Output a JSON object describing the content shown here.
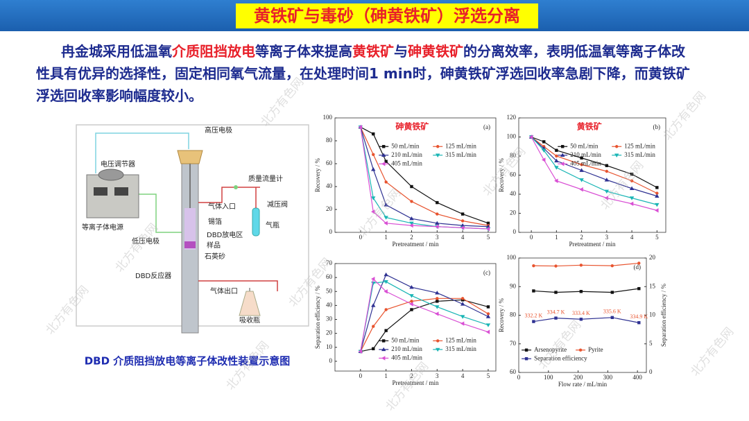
{
  "header": {
    "title": "黄铁矿与毒砂（砷黄铁矿）浮选分离"
  },
  "paragraph": [
    {
      "text": "冉金城采用低温氧",
      "color": "#1d2b8f"
    },
    {
      "text": "介质阻挡放电",
      "color": "#e8202a"
    },
    {
      "text": "等离子体来提高",
      "color": "#1d2b8f"
    },
    {
      "text": "黄铁矿",
      "color": "#e8202a"
    },
    {
      "text": "与",
      "color": "#1d2b8f"
    },
    {
      "text": "砷黄铁矿",
      "color": "#e8202a"
    },
    {
      "text": "的分离效率，表明低温氧等离子体改性具有优异的选择性，固定相同氧气流量，在处理时间1 min时，砷黄铁矿浮选回收率急剧下降，而黄铁矿浮选回收率影响幅度较小。",
      "color": "#1d2b8f"
    }
  ],
  "diagram": {
    "labels": [
      "高压电极",
      "电压调节器",
      "质量流量计",
      "减压阀",
      "气体入口",
      "锡箔",
      "气瓶",
      "等离子体电源",
      "低压电极",
      "DBD放电区",
      "样品",
      "石英砂",
      "DBD反应器",
      "气体出口",
      "吸收瓶"
    ],
    "caption": "DBD 介质阻挡放电等离子体改性装置示意图"
  },
  "watermark": "北方有色网",
  "chart_data": [
    {
      "type": "line",
      "label": "砷黄铁矿",
      "label_color": "#e8202a",
      "panel": "(a)",
      "x_label": "Pretreatment / min",
      "y_label": "Recovery / %",
      "x": [
        0,
        0.5,
        1,
        2,
        3,
        4,
        5
      ],
      "xlim": [
        -1,
        5.3
      ],
      "xticks": [
        0,
        1,
        2,
        3,
        4,
        5
      ],
      "ylim": [
        0,
        100
      ],
      "yticks": [
        0,
        20,
        40,
        60,
        80,
        100
      ],
      "legend": "upper right",
      "series": [
        {
          "name": "50 mL/min",
          "color": "#111111",
          "marker": "square",
          "values": [
            92,
            86,
            62,
            40,
            26,
            16,
            8
          ]
        },
        {
          "name": "125 mL/min",
          "color": "#e8542f",
          "marker": "circle",
          "values": [
            92,
            68,
            44,
            27,
            16,
            10,
            6
          ]
        },
        {
          "name": "210 mL/min",
          "color": "#2e3192",
          "marker": "triangle-up",
          "values": [
            92,
            55,
            24,
            12,
            8,
            6,
            5
          ]
        },
        {
          "name": "315 mL/min",
          "color": "#19b5b5",
          "marker": "triangle-down",
          "values": [
            92,
            30,
            13,
            8,
            5,
            4,
            3
          ]
        },
        {
          "name": "405 mL/min",
          "color": "#d94fd4",
          "marker": "triangle-left",
          "values": [
            92,
            18,
            8,
            6,
            5,
            4,
            3
          ]
        }
      ]
    },
    {
      "type": "line",
      "label": "黄铁矿",
      "label_color": "#e8202a",
      "panel": "(b)",
      "x_label": "Pretreatment / min",
      "y_label": "Recovery / %",
      "x": [
        0,
        0.5,
        1,
        2,
        3,
        4,
        5
      ],
      "xlim": [
        -0.5,
        5.35
      ],
      "xticks": [
        0,
        1,
        2,
        3,
        4,
        5
      ],
      "ylim": [
        0,
        120
      ],
      "yticks": [
        0,
        20,
        40,
        60,
        80,
        100,
        120
      ],
      "legend": "upper right",
      "series": [
        {
          "name": "50 mL/min",
          "color": "#111111",
          "marker": "square",
          "values": [
            100,
            95,
            86,
            78,
            70,
            61,
            47
          ]
        },
        {
          "name": "125 mL/min",
          "color": "#e8542f",
          "marker": "circle",
          "values": [
            100,
            90,
            80,
            71,
            64,
            54,
            41
          ]
        },
        {
          "name": "210 mL/min",
          "color": "#2e3192",
          "marker": "triangle-up",
          "values": [
            100,
            88,
            75,
            65,
            55,
            46,
            38
          ]
        },
        {
          "name": "315 mL/min",
          "color": "#19b5b5",
          "marker": "triangle-down",
          "values": [
            100,
            86,
            68,
            55,
            43,
            36,
            29
          ]
        },
        {
          "name": "405 mL/min",
          "color": "#d94fd4",
          "marker": "triangle-left",
          "values": [
            100,
            76,
            54,
            45,
            36,
            30,
            23
          ]
        }
      ]
    },
    {
      "type": "line",
      "panel": "(c)",
      "x_label": "Pretreatment / min",
      "y_label": "Separation efficiency / %",
      "x": [
        0,
        0.5,
        1,
        2,
        3,
        4,
        5
      ],
      "xlim": [
        -1,
        5.3
      ],
      "xticks": [
        0,
        1,
        2,
        3,
        4,
        5
      ],
      "ylim": [
        -7,
        70
      ],
      "yticks": [
        0,
        10,
        20,
        30,
        40,
        50,
        60,
        70
      ],
      "legend": "lower right",
      "series": [
        {
          "name": "50 mL/min",
          "color": "#111111",
          "marker": "square",
          "values": [
            7,
            9,
            22,
            37,
            43,
            44,
            39
          ]
        },
        {
          "name": "125 mL/min",
          "color": "#e8542f",
          "marker": "circle",
          "values": [
            7,
            25,
            37,
            43,
            45,
            45,
            34
          ]
        },
        {
          "name": "210 mL/min",
          "color": "#2e3192",
          "marker": "triangle-up",
          "values": [
            7,
            40,
            62,
            53,
            49,
            41,
            32
          ]
        },
        {
          "name": "315 mL/min",
          "color": "#19b5b5",
          "marker": "triangle-down",
          "values": [
            7,
            56,
            57,
            47,
            39,
            32,
            26
          ]
        },
        {
          "name": "405 mL/min",
          "color": "#d94fd4",
          "marker": "triangle-left",
          "values": [
            7,
            59,
            50,
            41,
            34,
            27,
            21
          ]
        }
      ]
    },
    {
      "type": "line",
      "panel": "(d)",
      "x_label": "Flow rate / mL/min",
      "y_label": "Recovery / %",
      "y2_label": "Separation efficiency / %",
      "x": [
        50,
        125,
        210,
        315,
        405
      ],
      "xlim": [
        0,
        430
      ],
      "xticks": [
        0,
        100,
        200,
        300,
        400
      ],
      "ylim": [
        60,
        100
      ],
      "yticks": [
        60,
        70,
        80,
        90,
        100
      ],
      "y2lim": [
        0,
        20
      ],
      "y2ticks": [
        0,
        5,
        10,
        15,
        20
      ],
      "legend": "lower left",
      "point_label_color": "#e8542f",
      "series": [
        {
          "name": "Arsenopyrite",
          "color": "#111111",
          "marker": "square",
          "values": [
            88.5,
            88,
            88.3,
            88,
            89.3
          ]
        },
        {
          "name": "Pyrite",
          "color": "#e8542f",
          "marker": "circle",
          "values": [
            97.3,
            97.2,
            97.5,
            97.3,
            98.2
          ]
        },
        {
          "name": "Separation efficiency",
          "color": "#2e3192",
          "marker": "square",
          "axis": "y2",
          "values": [
            8.9,
            9.5,
            9.3,
            9.6,
            8.7
          ],
          "point_labels": [
            "332.2 K",
            "334.7 K",
            "333.4 K",
            "335.6 K",
            "334.9 K"
          ]
        }
      ]
    }
  ]
}
